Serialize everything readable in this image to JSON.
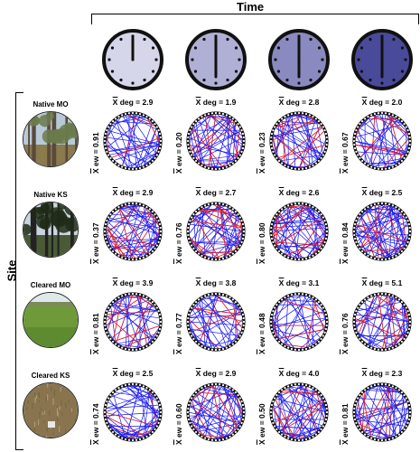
{
  "titles": {
    "time": "Time",
    "site": "Site"
  },
  "xbar": "X",
  "deg_suffix": " deg = ",
  "ew_suffix": " ew = ",
  "clocks": [
    {
      "fill": "#d6d6ea",
      "hand_angle": 0
    },
    {
      "fill": "#b0b0d6",
      "hand_angle": 180
    },
    {
      "fill": "#8a8ac0",
      "hand_angle": 180
    },
    {
      "fill": "#4a4a9a",
      "hand_angle": 180
    }
  ],
  "sites": [
    {
      "name": "Native MO",
      "photo": "native-forest",
      "deg": [
        "2.9",
        "1.9",
        "2.8",
        "2.0"
      ],
      "ew": [
        "0.91",
        "0.20",
        "0.23",
        "0.67"
      ]
    },
    {
      "name": "Native KS",
      "photo": "native-forest-dark",
      "deg": [
        "2.9",
        "2.7",
        "2.6",
        "2.5"
      ],
      "ew": [
        "0.37",
        "0.76",
        "0.80",
        "0.84"
      ]
    },
    {
      "name": "Cleared MO",
      "photo": "cleared-grass",
      "deg": [
        "3.9",
        "3.8",
        "3.1",
        "5.1"
      ],
      "ew": [
        "0.81",
        "0.77",
        "0.48",
        "0.76"
      ]
    },
    {
      "name": "Cleared KS",
      "photo": "cleared-ground",
      "deg": [
        "2.5",
        "2.9",
        "4.0",
        "2.3"
      ],
      "ew": [
        "0.74",
        "0.60",
        "0.50",
        "0.81"
      ]
    }
  ],
  "colors": {
    "edge_blue": "#1a1aee",
    "edge_red": "#e0202a",
    "ring": "#111111"
  }
}
